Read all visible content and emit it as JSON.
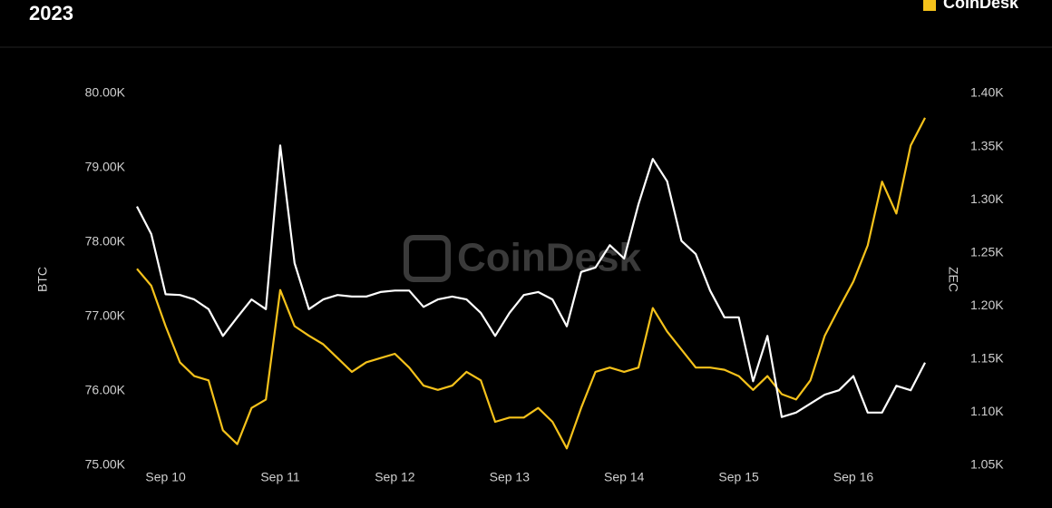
{
  "header": {
    "title": "2023",
    "logo": "CoinDesk"
  },
  "chart_data": {
    "type": "line",
    "watermark": "CoinDesk",
    "categories": [
      null,
      null,
      "Sep 10",
      null,
      null,
      null,
      null,
      null,
      null,
      null,
      "Sep 11",
      null,
      null,
      null,
      null,
      null,
      null,
      null,
      "Sep 12",
      null,
      null,
      null,
      null,
      null,
      null,
      null,
      "Sep 13",
      null,
      null,
      null,
      null,
      null,
      null,
      null,
      "Sep 14",
      null,
      null,
      null,
      null,
      null,
      null,
      null,
      "Sep 15",
      null,
      null,
      null,
      null,
      null,
      null,
      null,
      "Sep 16",
      null,
      null,
      null,
      null,
      null
    ],
    "y_label": "BTC",
    "y2_label": "ZEC",
    "grid": false,
    "ylim": [
      75000,
      80000
    ],
    "yticks": [
      {
        "value": 75000,
        "label": "75.00K"
      },
      {
        "value": 76000,
        "label": "76.00K"
      },
      {
        "value": 77000,
        "label": "77.00K"
      },
      {
        "value": 78000,
        "label": "78.00K"
      },
      {
        "value": 79000,
        "label": "79.00K"
      },
      {
        "value": 80000,
        "label": "80.00K"
      }
    ],
    "y2lim": [
      1050,
      1400
    ],
    "y2ticks": [
      {
        "value": 1050,
        "label": "1.05K"
      },
      {
        "value": 1100,
        "label": "1.10K"
      },
      {
        "value": 1150,
        "label": "1.15K"
      },
      {
        "value": 1200,
        "label": "1.20K"
      },
      {
        "value": 1250,
        "label": "1.25K"
      },
      {
        "value": 1300,
        "label": "1.30K"
      },
      {
        "value": 1350,
        "label": "1.35K"
      },
      {
        "value": 1400,
        "label": "1.40K"
      }
    ],
    "series": [
      {
        "name": "BTC",
        "color": "#ffffff",
        "values": [
          78480,
          78110,
          77300,
          77290,
          77230,
          77100,
          76740,
          76990,
          77230,
          77100,
          79300,
          77720,
          77100,
          77230,
          77290,
          77270,
          77270,
          77330,
          77350,
          77350,
          77130,
          77230,
          77270,
          77230,
          77050,
          76740,
          77050,
          77290,
          77330,
          77230,
          76870,
          77600,
          77660,
          77960,
          77780,
          78510,
          79120,
          78820,
          78020,
          77840,
          77350,
          76990,
          76990,
          76130,
          76740,
          75650,
          75710,
          75830,
          75950,
          76010,
          76200,
          75710,
          75710,
          76070,
          76010,
          76380
        ]
      },
      {
        "name": "ZEC",
        "color": "#f5c21b",
        "axis": "y2",
        "values": [
          1235,
          1219,
          1181,
          1147,
          1134,
          1130,
          1083,
          1070,
          1104,
          1112,
          1215,
          1181,
          1172,
          1164,
          1151,
          1138,
          1147,
          1151,
          1155,
          1142,
          1125,
          1121,
          1125,
          1138,
          1130,
          1091,
          1095,
          1095,
          1104,
          1091,
          1066,
          1104,
          1138,
          1142,
          1138,
          1142,
          1198,
          1176,
          1159,
          1142,
          1142,
          1140,
          1134,
          1121,
          1134,
          1117,
          1112,
          1130,
          1172,
          1198,
          1223,
          1257,
          1317,
          1287,
          1351,
          1377
        ]
      }
    ]
  }
}
